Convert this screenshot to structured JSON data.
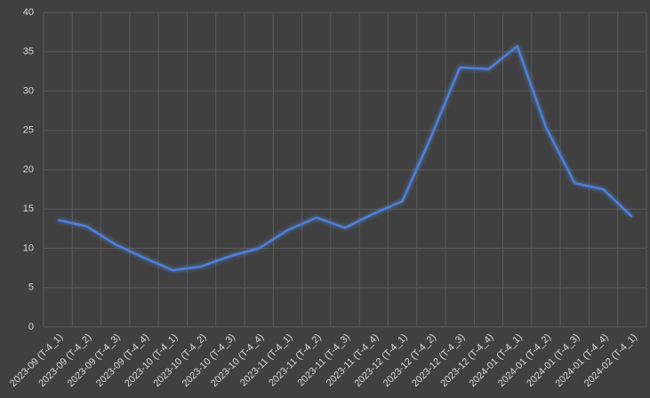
{
  "chart_data": {
    "type": "line",
    "categories": [
      "2023-09 (T-4_1)",
      "2023-09 (T-4_2)",
      "2023-09 (T-4_3)",
      "2023-09 (T-4_4)",
      "2023-10 (T-4_1)",
      "2023-10 (T-4_2)",
      "2023-10 (T-4_3)",
      "2023-10 (T-4_4)",
      "2023-11 (T-4_1)",
      "2023-11 (T-4_2)",
      "2023-11 (T-4_3)",
      "2023-11 (T-4_4)",
      "2023-12 (T-4_1)",
      "2023-12 (T-4_2)",
      "2023-12 (T-4_3)",
      "2023-12 (T-4_4)",
      "2024-01 (T-4_1)",
      "2024-01 (T-4_2)",
      "2024-01 (T-4_3)",
      "2024-01 (T-4_4)",
      "2024-02 (T-4_1)"
    ],
    "values": [
      13.6,
      12.8,
      10.5,
      8.8,
      7.2,
      7.7,
      9.0,
      10.0,
      12.3,
      13.9,
      12.6,
      14.4,
      16.0,
      24.2,
      33.0,
      32.8,
      35.7,
      25.4,
      18.3,
      17.5,
      14.0
    ],
    "color": "#4f7fd6",
    "ylim": [
      0,
      40
    ],
    "yticks": [
      0,
      5,
      10,
      15,
      20,
      25,
      30,
      35,
      40
    ],
    "grid": true
  }
}
